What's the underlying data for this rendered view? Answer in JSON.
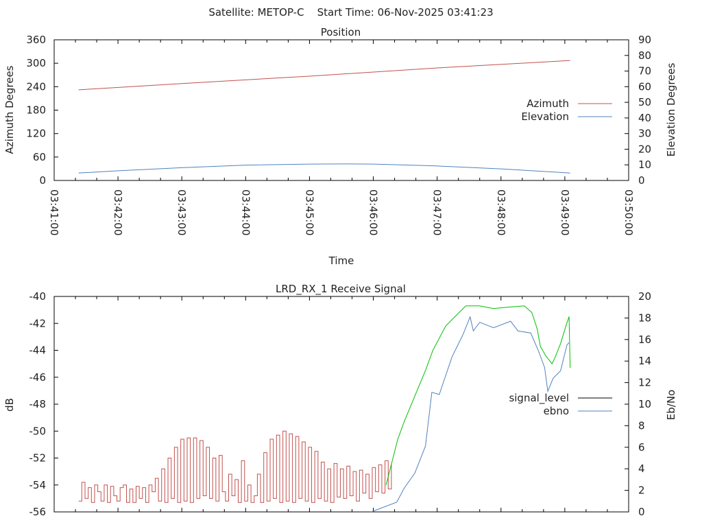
{
  "header": {
    "title": "Satellite: METOP-C    Start Time: 06-Nov-2025 03:41:23"
  },
  "colors": {
    "azimuth": "#c0504d",
    "elevation": "#4f81bd",
    "signal_low": "#c0504d",
    "signal_high": "#00c000",
    "ebno": "#4f81bd",
    "legend_signal": "#000000"
  },
  "chart_data": [
    {
      "type": "line",
      "title": "Position",
      "xlabel": "Time",
      "ylabel": "Azimuth Degrees",
      "y2label": "Elevation Degrees",
      "xlim": [
        "03:41:00",
        "03:50:00"
      ],
      "xticks": [
        "03:41:00",
        "03:42:00",
        "03:43:00",
        "03:44:00",
        "03:45:00",
        "03:46:00",
        "03:47:00",
        "03:48:00",
        "03:49:00",
        "03:50:00"
      ],
      "ylim": [
        0,
        360
      ],
      "yticks": [
        "0",
        "60",
        "120",
        "180",
        "240",
        "300",
        "360"
      ],
      "y2lim": [
        0,
        90
      ],
      "y2ticks": [
        "0",
        "10",
        "20",
        "30",
        "40",
        "50",
        "60",
        "70",
        "80",
        "90"
      ],
      "legend_position": "right",
      "series": [
        {
          "name": "Azimuth",
          "axis": "y",
          "color_key": "azimuth",
          "points": [
            [
              "03:41:23",
              232
            ],
            [
              "03:43:00",
              248
            ],
            [
              "03:45:00",
              267
            ],
            [
              "03:47:00",
              288
            ],
            [
              "03:49:05",
              307
            ]
          ]
        },
        {
          "name": "Elevation",
          "axis": "y2",
          "color_key": "elevation",
          "points": [
            [
              "03:41:23",
              4.75
            ],
            [
              "03:42:00",
              6.2
            ],
            [
              "03:43:00",
              8.2
            ],
            [
              "03:44:00",
              9.8
            ],
            [
              "03:45:00",
              10.5
            ],
            [
              "03:45:30",
              10.6
            ],
            [
              "03:46:00",
              10.5
            ],
            [
              "03:47:00",
              9.3
            ],
            [
              "03:48:00",
              7.4
            ],
            [
              "03:49:05",
              4.8
            ]
          ]
        }
      ]
    },
    {
      "type": "line",
      "title": "LRD_RX_1 Receive Signal",
      "ylabel": "dB",
      "y2label": "Eb/No",
      "xlim": [
        "03:41:00",
        "03:50:00"
      ],
      "ylim": [
        -56,
        -40
      ],
      "yticks": [
        "-56",
        "-54",
        "-52",
        "-50",
        "-48",
        "-46",
        "-44",
        "-42",
        "-40"
      ],
      "y2lim": [
        0,
        20
      ],
      "y2ticks": [
        "0",
        "2",
        "4",
        "6",
        "8",
        "10",
        "12",
        "14",
        "16",
        "18",
        "20"
      ],
      "legend_position": "right",
      "series": [
        {
          "name": "signal_level",
          "axis": "y",
          "low_segment": {
            "start": "03:41:23",
            "step_seconds": 3,
            "color_key": "signal_low",
            "values": [
              -55.2,
              -53.8,
              -55,
              -54.2,
              -55.3,
              -54,
              -54.5,
              -55.2,
              -54.0,
              -55.3,
              -54.1,
              -54.8,
              -55.2,
              -54.2,
              -54.0,
              -55.3,
              -54.3,
              -55.3,
              -54.1,
              -55.0,
              -54.2,
              -55.3,
              -54.0,
              -54.5,
              -53.5,
              -55.2,
              -52.8,
              -55.3,
              -52.0,
              -55.0,
              -51.2,
              -55.3,
              -50.6,
              -55.2,
              -50.5,
              -55.3,
              -50.5,
              -55.0,
              -50.7,
              -54.8,
              -51.2,
              -55.0,
              -52.0,
              -55.2,
              -51.8,
              -54.5,
              -55.2,
              -53.2,
              -54.8,
              -53.6,
              -55.3,
              -52.2,
              -55.2,
              -54.0,
              -55.3,
              -54.8,
              -53.2,
              -55.3,
              -51.6,
              -55.2,
              -50.6,
              -55.0,
              -50.3,
              -55.3,
              -50.0,
              -55.2,
              -50.2,
              -55.3,
              -50.4,
              -55.0,
              -50.8,
              -55.2,
              -51.2,
              -55.3,
              -51.5,
              -55.0,
              -52.3,
              -55.2,
              -52.8,
              -55.3,
              -52.4,
              -54.9,
              -52.8,
              -55.0,
              -52.6,
              -54.8,
              -53.0,
              -55.2,
              -52.9,
              -54.6,
              -53.2,
              -55.0,
              -52.7,
              -54.5,
              -52.5,
              -54.6,
              -52.2,
              -54.3,
              -52.4
            ]
          },
          "high_segment": {
            "color_key": "signal_high",
            "points": [
              [
                "03:46:12",
                -54.0
              ],
              [
                "03:46:23",
                -50.6
              ],
              [
                "03:46:29",
                -49.3
              ],
              [
                "03:46:39",
                -47.4
              ],
              [
                "03:46:49",
                -45.5
              ],
              [
                "03:46:56",
                -44.0
              ],
              [
                "03:47:08",
                -42.2
              ],
              [
                "03:47:18",
                -41.4
              ],
              [
                "03:47:27",
                -40.7
              ],
              [
                "03:47:40",
                -40.7
              ],
              [
                "03:47:53",
                -40.9
              ],
              [
                "03:48:06",
                -40.8
              ],
              [
                "03:48:22",
                -40.7
              ],
              [
                "03:48:29",
                -41.2
              ],
              [
                "03:48:34",
                -42.4
              ],
              [
                "03:48:37",
                -43.7
              ],
              [
                "03:48:42",
                -44.4
              ],
              [
                "03:48:48",
                -45.0
              ],
              [
                "03:48:51",
                -44.5
              ],
              [
                "03:48:56",
                -43.5
              ],
              [
                "03:49:01",
                -42.2
              ],
              [
                "03:49:04",
                -41.5
              ],
              [
                "03:49:05",
                -45.3
              ]
            ]
          }
        },
        {
          "name": "ebno",
          "axis": "y2",
          "color_key": "ebno",
          "points": [
            [
              "03:45:58",
              0
            ],
            [
              "03:46:22",
              0.9
            ],
            [
              "03:46:29",
              2.2
            ],
            [
              "03:46:39",
              3.6
            ],
            [
              "03:46:49",
              6.1
            ],
            [
              "03:46:55",
              11.1
            ],
            [
              "03:47:02",
              10.9
            ],
            [
              "03:47:14",
              14.4
            ],
            [
              "03:47:24",
              16.4
            ],
            [
              "03:47:31",
              18.1
            ],
            [
              "03:47:34",
              16.8
            ],
            [
              "03:47:40",
              17.6
            ],
            [
              "03:47:53",
              17.1
            ],
            [
              "03:48:09",
              17.7
            ],
            [
              "03:48:16",
              16.8
            ],
            [
              "03:48:28",
              16.6
            ],
            [
              "03:48:35",
              15.0
            ],
            [
              "03:48:41",
              13.4
            ],
            [
              "03:48:44",
              11.2
            ],
            [
              "03:48:49",
              12.4
            ],
            [
              "03:48:56",
              13.1
            ],
            [
              "03:49:02",
              15.5
            ],
            [
              "03:49:04",
              15.7
            ]
          ]
        }
      ]
    }
  ]
}
